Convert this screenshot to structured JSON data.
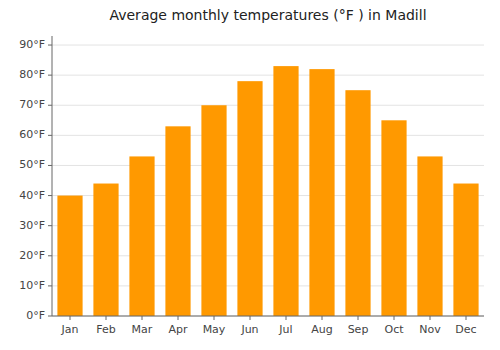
{
  "chart_data": {
    "type": "bar",
    "title": "Average monthly temperatures (°F ) in Madill",
    "categories": [
      "Jan",
      "Feb",
      "Mar",
      "Apr",
      "May",
      "Jun",
      "Jul",
      "Aug",
      "Sep",
      "Oct",
      "Nov",
      "Dec"
    ],
    "values": [
      40,
      44,
      53,
      63,
      70,
      78,
      83,
      82,
      75,
      65,
      53,
      44
    ],
    "color": "#FF9900",
    "ylim": [
      0,
      93
    ],
    "yticks": [
      {
        "value": 0,
        "label": "0°F"
      },
      {
        "value": 10,
        "label": "10°F"
      },
      {
        "value": 20,
        "label": "20°F"
      },
      {
        "value": 30,
        "label": "30°F"
      },
      {
        "value": 40,
        "label": "40°F"
      },
      {
        "value": 50,
        "label": "50°F"
      },
      {
        "value": 60,
        "label": "60°F"
      },
      {
        "value": 70,
        "label": "70°F"
      },
      {
        "value": 80,
        "label": "80°F"
      },
      {
        "value": 90,
        "label": "90°F"
      }
    ],
    "grid": true
  }
}
